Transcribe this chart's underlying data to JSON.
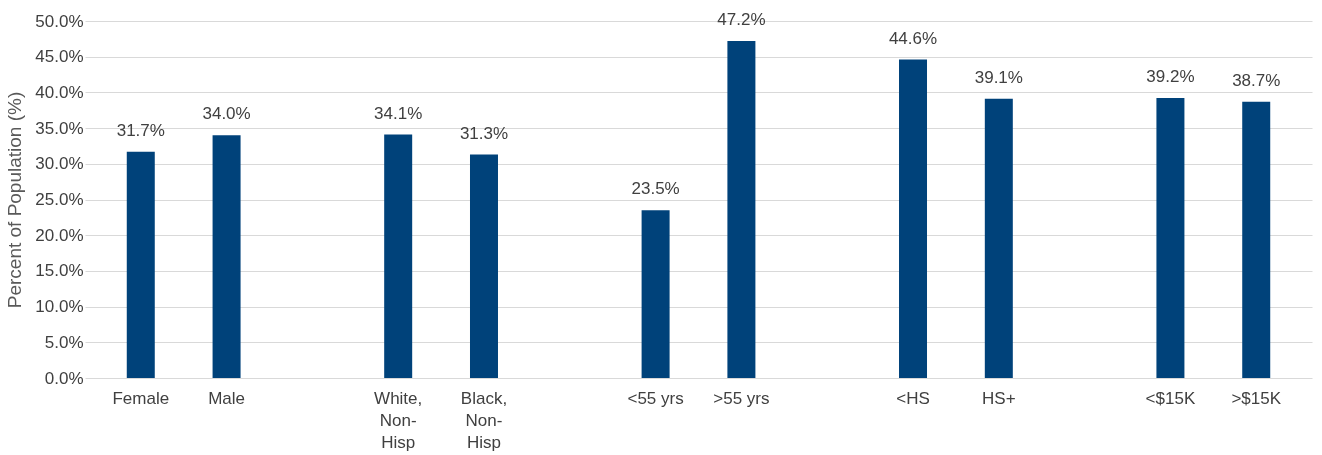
{
  "chart_data": {
    "type": "bar",
    "ylabel": "Percent of Population (%)",
    "categories": [
      "Female",
      "Male",
      null,
      "White, Non-Hisp",
      "Black, Non-Hisp",
      null,
      "<55 yrs",
      ">55 yrs",
      null,
      "<HS",
      "HS+",
      null,
      "<$15K",
      ">$15K"
    ],
    "values": [
      31.7,
      34.0,
      null,
      34.1,
      31.3,
      null,
      23.5,
      47.2,
      null,
      44.6,
      39.1,
      null,
      39.2,
      38.7
    ],
    "value_labels": [
      "31.7%",
      "34.0%",
      null,
      "34.1%",
      "31.3%",
      null,
      "23.5%",
      "47.2%",
      null,
      "44.6%",
      "39.1%",
      null,
      "39.2%",
      "38.7%"
    ],
    "color": "#00427a",
    "ylim": [
      0,
      50
    ],
    "yticks": [
      {
        "value": 0,
        "label": "0.0%"
      },
      {
        "value": 5,
        "label": "5.0%"
      },
      {
        "value": 10,
        "label": "10.0%"
      },
      {
        "value": 15,
        "label": "15.0%"
      },
      {
        "value": 20,
        "label": "20.0%"
      },
      {
        "value": 25,
        "label": "25.0%"
      },
      {
        "value": 30,
        "label": "30.0%"
      },
      {
        "value": 35,
        "label": "35.0%"
      },
      {
        "value": 40,
        "label": "40.0%"
      },
      {
        "value": 45,
        "label": "45.0%"
      },
      {
        "value": 50,
        "label": "50.0%"
      }
    ],
    "grid": "y"
  }
}
